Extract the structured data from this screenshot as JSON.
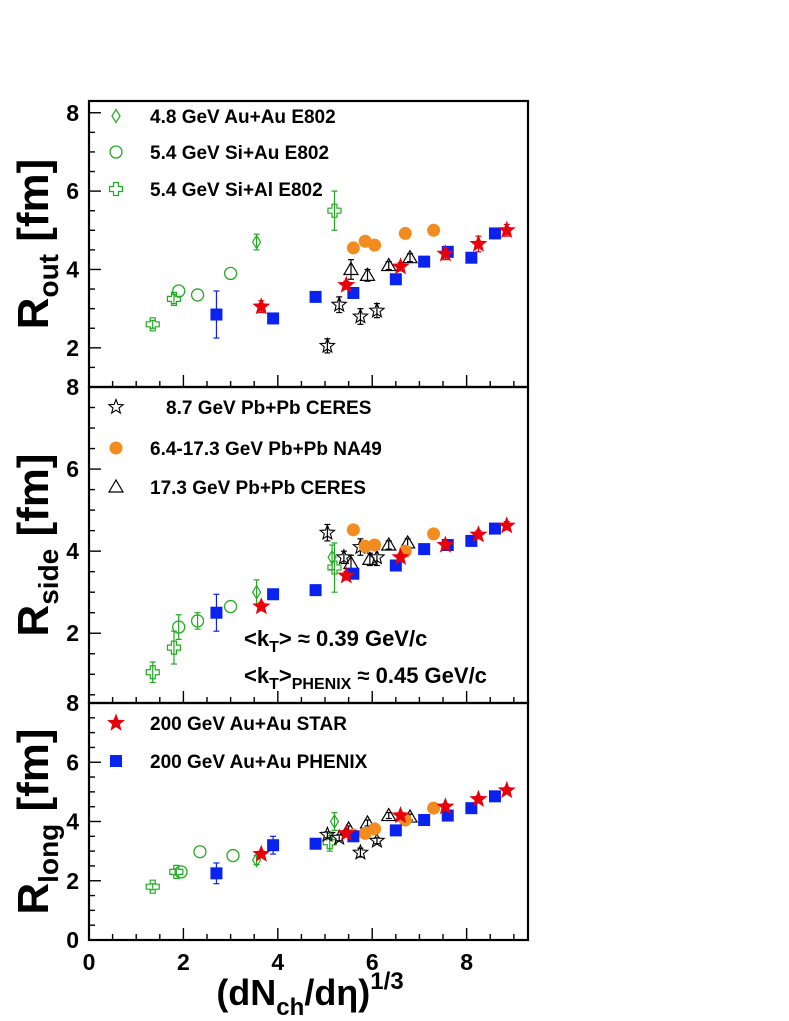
{
  "chart_data": {
    "type": "scatter",
    "xlabel": {
      "main": "(dN",
      "sub": "ch",
      "mid": "/dη)",
      "sup": "1/3"
    },
    "xlim": [
      0,
      9.3
    ],
    "x_ticks": [
      0,
      2,
      4,
      6,
      8
    ],
    "legend_entries": {
      "e802_auau": {
        "label": "4.8 GeV Au+Au E802",
        "color": "#22aa22",
        "marker": "diamond"
      },
      "e802_siau": {
        "label": "5.4 GeV Si+Au E802",
        "color": "#22aa22",
        "marker": "circle-open"
      },
      "e802_sial": {
        "label": "5.4 GeV Si+Al E802",
        "color": "#22aa22",
        "marker": "cross-open"
      },
      "ceres_87": {
        "label": "8.7 GeV Pb+Pb CERES",
        "color": "#000000",
        "marker": "star-open"
      },
      "na49": {
        "label": "6.4-17.3 GeV Pb+Pb NA49",
        "color": "#f28c1e",
        "marker": "circle"
      },
      "ceres_173": {
        "label": "17.3 GeV Pb+Pb CERES",
        "color": "#000000",
        "marker": "triangle-open"
      },
      "star": {
        "label": "200 GeV Au+Au STAR",
        "color": "#e8000b",
        "marker": "star"
      },
      "phenix": {
        "label": "200 GeV Au+Au PHENIX",
        "color": "#0a22f0",
        "marker": "square"
      }
    },
    "panels": [
      {
        "id": "out",
        "ylabel": {
          "main": "R",
          "sub": "out",
          "unit": " [fm]"
        },
        "ylim": [
          1,
          8.3
        ],
        "y_ticks": [
          2,
          4,
          6,
          8
        ],
        "y_tick_labels": [
          "2",
          "4",
          "6",
          "8"
        ],
        "legend": [
          "e802_auau",
          "e802_siau",
          "e802_sial"
        ],
        "series": {
          "e802_auau": [
            [
              3.55,
              4.7,
              0.2
            ]
          ],
          "e802_siau": [
            [
              1.9,
              3.45,
              0
            ],
            [
              2.3,
              3.35,
              0
            ],
            [
              3.0,
              3.9,
              0
            ]
          ],
          "e802_sial": [
            [
              1.35,
              2.6,
              0.1
            ],
            [
              1.8,
              3.25,
              0.12
            ]
          ],
          "e802_sial_high": [
            [
              5.2,
              5.5,
              0.5
            ]
          ],
          "ceres_87": [
            [
              5.05,
              2.05,
              0.18
            ],
            [
              5.3,
              3.1,
              0.2
            ],
            [
              5.75,
              2.8,
              0.2
            ],
            [
              6.1,
              2.95,
              0.18
            ]
          ],
          "ceres_173": [
            [
              5.55,
              4.0,
              0.25
            ],
            [
              5.9,
              3.85,
              0.15
            ],
            [
              6.35,
              4.1,
              0.1
            ],
            [
              6.8,
              4.3,
              0.1
            ]
          ],
          "na49": [
            [
              5.6,
              4.55,
              0
            ],
            [
              5.85,
              4.72,
              0
            ],
            [
              6.05,
              4.62,
              0
            ],
            [
              6.7,
              4.92,
              0
            ],
            [
              7.3,
              5.0,
              0
            ]
          ],
          "star": [
            [
              3.65,
              3.05,
              0.15
            ],
            [
              5.45,
              3.6,
              0.1
            ],
            [
              6.6,
              4.07,
              0.1
            ],
            [
              7.55,
              4.4,
              0.15
            ],
            [
              8.25,
              4.65,
              0.2
            ],
            [
              8.85,
              5.0,
              0.15
            ]
          ],
          "phenix": [
            [
              2.7,
              2.85,
              0.6
            ],
            [
              3.9,
              2.75,
              0
            ],
            [
              4.8,
              3.3,
              0
            ],
            [
              5.6,
              3.4,
              0
            ],
            [
              6.5,
              3.75,
              0
            ],
            [
              7.1,
              4.2,
              0
            ],
            [
              7.6,
              4.45,
              0
            ],
            [
              8.1,
              4.3,
              0
            ],
            [
              8.6,
              4.92,
              0
            ]
          ]
        }
      },
      {
        "id": "side",
        "ylabel": {
          "main": "R",
          "sub": "side",
          "unit": " [fm]"
        },
        "ylim": [
          0.3,
          8.0
        ],
        "y_ticks": [
          2,
          4,
          6,
          8
        ],
        "y_tick_labels": [
          "2",
          "4",
          "6",
          "8"
        ],
        "legend": [
          "ceres_87",
          "na49",
          "ceres_173"
        ],
        "annotation": [
          {
            "main": "<k",
            "sub": "T",
            "rest": "> ≈ 0.39 GeV/c"
          },
          {
            "main": "<k",
            "sub": "T",
            "mid": ">",
            "sub2": "PHENIX",
            "rest": " ≈ 0.45 GeV/c"
          }
        ],
        "series": {
          "e802_auau": [
            [
              3.55,
              3.0,
              0.3
            ],
            [
              5.15,
              3.85,
              0.3
            ]
          ],
          "e802_siau": [
            [
              1.9,
              2.15,
              0.3
            ],
            [
              2.3,
              2.3,
              0.2
            ],
            [
              3.0,
              2.65,
              0
            ]
          ],
          "e802_sial": [
            [
              1.35,
              1.05,
              0.25
            ],
            [
              1.8,
              1.65,
              0.4
            ],
            [
              5.2,
              3.6,
              0.6
            ]
          ],
          "ceres_87": [
            [
              5.05,
              4.45,
              0.2
            ],
            [
              5.4,
              3.85,
              0.15
            ],
            [
              5.75,
              4.1,
              0.2
            ],
            [
              6.1,
              3.85,
              0.2
            ]
          ],
          "ceres_173": [
            [
              5.55,
              3.7,
              0.2
            ],
            [
              5.95,
              3.8,
              0.15
            ],
            [
              6.35,
              4.15,
              0.1
            ],
            [
              6.75,
              4.2,
              0.1
            ]
          ],
          "na49": [
            [
              5.6,
              4.52,
              0
            ],
            [
              5.85,
              4.12,
              0
            ],
            [
              6.05,
              4.15,
              0
            ],
            [
              6.7,
              4.0,
              0
            ],
            [
              7.3,
              4.42,
              0
            ]
          ],
          "star": [
            [
              3.65,
              2.65,
              0.1
            ],
            [
              5.45,
              3.4,
              0.1
            ],
            [
              6.6,
              3.85,
              0.1
            ],
            [
              7.55,
              4.15,
              0.1
            ],
            [
              8.25,
              4.4,
              0.1
            ],
            [
              8.85,
              4.62,
              0.1
            ]
          ],
          "phenix": [
            [
              2.7,
              2.5,
              0.45
            ],
            [
              3.9,
              2.95,
              0
            ],
            [
              4.8,
              3.05,
              0
            ],
            [
              5.6,
              3.45,
              0
            ],
            [
              6.5,
              3.65,
              0
            ],
            [
              7.1,
              4.05,
              0
            ],
            [
              7.6,
              4.15,
              0
            ],
            [
              8.1,
              4.25,
              0
            ],
            [
              8.6,
              4.55,
              0
            ]
          ]
        }
      },
      {
        "id": "long",
        "ylabel": {
          "main": "R",
          "sub": "long",
          "unit": " [fm]"
        },
        "ylim": [
          0,
          8.0
        ],
        "y_ticks": [
          0,
          2,
          4,
          6,
          8
        ],
        "y_tick_labels": [
          "0",
          "2",
          "4",
          "6",
          "8"
        ],
        "legend": [
          "star",
          "phenix"
        ],
        "series": {
          "e802_auau": [
            [
              3.55,
              2.7,
              0.15
            ],
            [
              5.2,
              4.0,
              0.3
            ]
          ],
          "e802_siau": [
            [
              1.95,
              2.3,
              0
            ],
            [
              2.35,
              2.98,
              0
            ],
            [
              3.05,
              2.85,
              0
            ]
          ],
          "e802_sial": [
            [
              1.35,
              1.8,
              0.1
            ],
            [
              1.85,
              2.3,
              0.1
            ],
            [
              5.1,
              3.3,
              0.3
            ]
          ],
          "ceres_87": [
            [
              5.05,
              3.55,
              0.1
            ],
            [
              5.3,
              3.45,
              0.1
            ],
            [
              5.75,
              2.95,
              0.15
            ],
            [
              6.1,
              3.35,
              0.1
            ]
          ],
          "ceres_173": [
            [
              5.5,
              3.75,
              0.1
            ],
            [
              5.9,
              3.95,
              0.1
            ],
            [
              6.35,
              4.2,
              0.1
            ],
            [
              6.8,
              4.15,
              0.1
            ]
          ],
          "na49": [
            [
              5.6,
              3.55,
              0
            ],
            [
              5.85,
              3.6,
              0
            ],
            [
              6.05,
              3.75,
              0
            ],
            [
              6.7,
              4.05,
              0
            ],
            [
              7.3,
              4.45,
              0
            ]
          ],
          "star": [
            [
              3.65,
              2.9,
              0.1
            ],
            [
              5.45,
              3.6,
              0.1
            ],
            [
              6.6,
              4.2,
              0.1
            ],
            [
              7.55,
              4.5,
              0.1
            ],
            [
              8.25,
              4.75,
              0.1
            ],
            [
              8.85,
              5.05,
              0.1
            ]
          ],
          "phenix": [
            [
              2.7,
              2.25,
              0.35
            ],
            [
              3.9,
              3.2,
              0.3
            ],
            [
              4.8,
              3.25,
              0
            ],
            [
              5.6,
              3.5,
              0
            ],
            [
              6.5,
              3.7,
              0
            ],
            [
              7.1,
              4.05,
              0
            ],
            [
              7.6,
              4.2,
              0
            ],
            [
              8.1,
              4.45,
              0
            ],
            [
              8.6,
              4.85,
              0
            ]
          ]
        }
      }
    ]
  }
}
